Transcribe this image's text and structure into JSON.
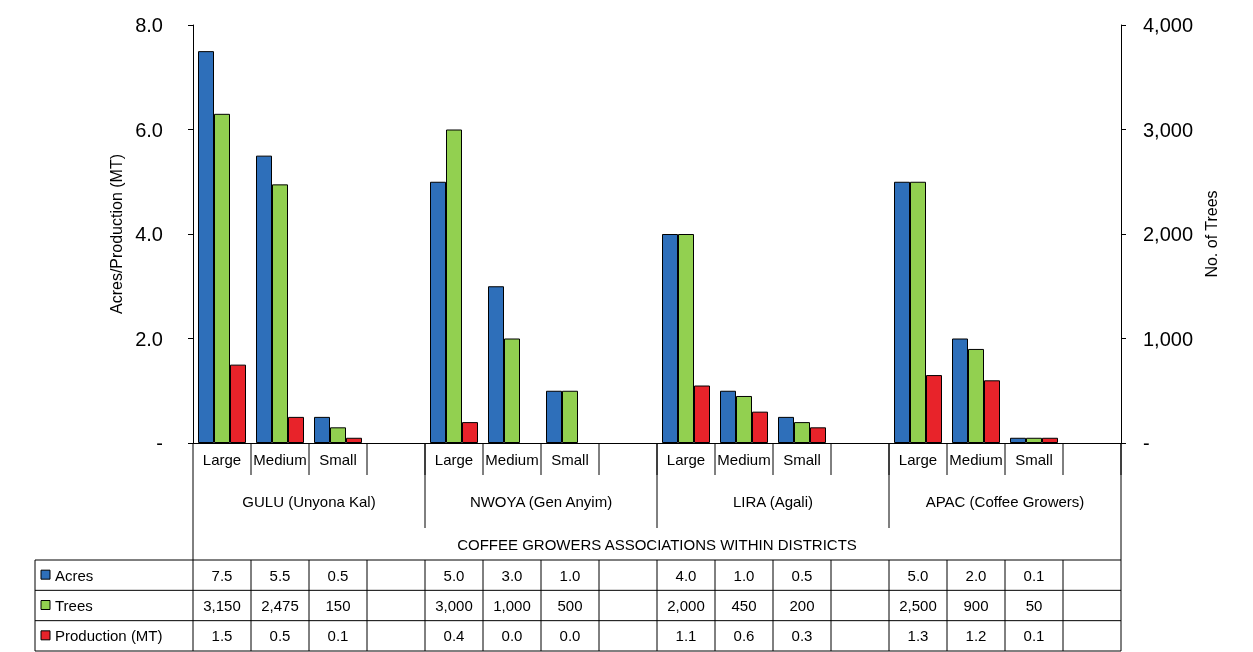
{
  "chart_data": {
    "type": "bar",
    "xlabel": "COFFEE GROWERS ASSOCIATIONS WITHIN DISTRICTS",
    "ylabel": "Acres/Production (MT)",
    "y2label": "No. of Trees",
    "categories": [
      "Large",
      "Medium",
      "Small",
      null,
      "Large",
      "Medium",
      "Small",
      null,
      "Large",
      "Medium",
      "Small",
      null,
      "Large",
      "Medium",
      "Small",
      null
    ],
    "annotations": [
      "GULU (Unyona Kal)",
      "NWOYA (Gen Anyim)",
      "LIRA (Agali)",
      "APAC (Coffee Growers)"
    ],
    "series": [
      {
        "name": "Acres",
        "color": "#2e6fba",
        "values": [
          7.5,
          5.5,
          0.5,
          null,
          5.0,
          3.0,
          1.0,
          null,
          4.0,
          1.0,
          0.5,
          null,
          5.0,
          2.0,
          0.1,
          null
        ],
        "value_labels": [
          "7.5",
          "5.5",
          "0.5",
          null,
          "5.0",
          "3.0",
          "1.0",
          null,
          "4.0",
          "1.0",
          "0.5",
          null,
          "5.0",
          "2.0",
          "0.1",
          null
        ]
      },
      {
        "name": "Trees",
        "color": "#92d050",
        "axis": "y2",
        "values": [
          3150,
          2475,
          150,
          null,
          3000,
          1000,
          500,
          null,
          2000,
          450,
          200,
          null,
          2500,
          900,
          50,
          null
        ],
        "value_labels": [
          "3,150",
          "2,475",
          "150",
          null,
          "3,000",
          "1,000",
          "500",
          null,
          "2,000",
          "450",
          "200",
          null,
          "2,500",
          "900",
          "50",
          null
        ]
      },
      {
        "name": "Production (MT)",
        "color": "#e8232a",
        "values": [
          1.5,
          0.5,
          0.1,
          null,
          0.4,
          0.0,
          0.0,
          null,
          1.1,
          0.6,
          0.3,
          null,
          1.3,
          1.2,
          0.1,
          null
        ],
        "value_labels": [
          "1.5",
          "0.5",
          "0.1",
          null,
          "0.4",
          "0.0",
          "0.0",
          null,
          "1.1",
          "0.6",
          "0.3",
          null,
          "1.3",
          "1.2",
          "0.1",
          null
        ]
      }
    ],
    "ylim": [
      0,
      8
    ],
    "yticks": [
      {
        "value": 0,
        "label": "-"
      },
      {
        "value": 2,
        "label": "2.0"
      },
      {
        "value": 4,
        "label": "4.0"
      },
      {
        "value": 6,
        "label": "6.0"
      },
      {
        "value": 8,
        "label": "8.0"
      }
    ],
    "y2lim": [
      0,
      4000
    ],
    "y2ticks": [
      {
        "value": 0,
        "label": "-"
      },
      {
        "value": 1000,
        "label": "1,000"
      },
      {
        "value": 2000,
        "label": "2,000"
      },
      {
        "value": 3000,
        "label": "3,000"
      },
      {
        "value": 4000,
        "label": "4,000"
      }
    ],
    "grid": false,
    "legend": "bottom"
  }
}
